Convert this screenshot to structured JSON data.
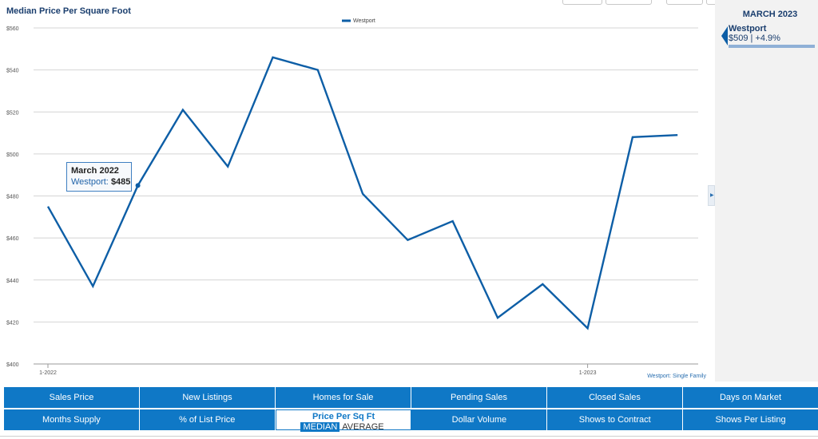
{
  "chart_data": {
    "type": "line",
    "title": "Median Price Per Square Foot",
    "x": [
      "1-2022",
      "2-2022",
      "3-2022",
      "4-2022",
      "5-2022",
      "6-2022",
      "7-2022",
      "8-2022",
      "9-2022",
      "10-2022",
      "11-2022",
      "12-2022",
      "1-2023",
      "2-2023",
      "3-2023"
    ],
    "x_tick_labels": [
      "1-2022",
      "1-2023"
    ],
    "series": [
      {
        "name": "Westport",
        "color": "#0d5ea6",
        "values": [
          475,
          437,
          485,
          521,
          494,
          546,
          540,
          481,
          459,
          468,
          422,
          438,
          417,
          508,
          509
        ]
      }
    ],
    "ylim": [
      400,
      560
    ],
    "y_ticks": [
      "$400",
      "$420",
      "$440",
      "$460",
      "$480",
      "$500",
      "$520",
      "$540",
      "$560"
    ],
    "grid": true,
    "legend": "top-center"
  },
  "tooltip": {
    "title": "March 2022",
    "series_name": "Westport:",
    "value": "$485",
    "index": 2
  },
  "credit": "Westport: Single Family",
  "side_panel": {
    "header": "MARCH 2023",
    "name": "Westport",
    "value_line": "$509 | +4.9%",
    "bar_fraction": 1.0
  },
  "tabs": {
    "row1": [
      "Sales Price",
      "New Listings",
      "Homes for Sale",
      "Pending Sales",
      "Closed Sales",
      "Days on Market"
    ],
    "row2_before": [
      "Months Supply",
      "% of List Price"
    ],
    "active": {
      "label": "Price Per Sq Ft",
      "options": [
        "MEDIAN",
        "AVERAGE"
      ],
      "selected": "MEDIAN"
    },
    "row2_after": [
      "Dollar Volume",
      "Shows to Contract",
      "Shows Per Listing"
    ]
  },
  "colors": {
    "accent": "#0f78c6",
    "series": "#0d5ea6",
    "title": "#1a3e6e"
  }
}
